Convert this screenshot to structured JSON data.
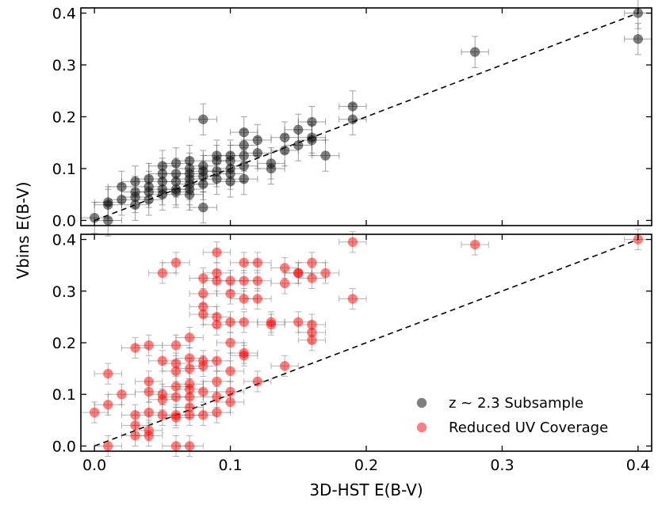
{
  "chart_data": {
    "type": "scatter",
    "shared_x": true,
    "xlabel": "3D-HST E(B-V)",
    "ylabel": "Vbins E(B-V)",
    "xlim": [
      -0.01,
      0.41
    ],
    "xticks": [
      0.0,
      0.1,
      0.2,
      0.3,
      0.4
    ],
    "xtick_labels": [
      "0.0",
      "0.1",
      "0.2",
      "0.3",
      "0.4"
    ],
    "legend": {
      "placement": "bottom-right of lower panel",
      "entries": [
        {
          "label": "z ~ 2.3 Subsample",
          "color": "#000000"
        },
        {
          "label": "Reduced UV Coverage",
          "color": "#ff0000"
        }
      ]
    },
    "one_to_one_line": {
      "style": "dashed",
      "from": [
        0.0,
        0.0
      ],
      "to": [
        0.4,
        0.4
      ]
    },
    "panels": [
      {
        "name": "top",
        "series_name": "z ~ 2.3 Subsample",
        "color": "#000000",
        "ylim": [
          -0.01,
          0.41
        ],
        "yticks": [
          0.0,
          0.1,
          0.2,
          0.3,
          0.4
        ],
        "ytick_labels": [
          "0.0",
          "0.1",
          "0.2",
          "0.3",
          "0.4"
        ],
        "xerr": 0.01,
        "yerr": 0.03,
        "points": [
          [
            0.0,
            0.005
          ],
          [
            0.01,
            0.03
          ],
          [
            0.01,
            0.035
          ],
          [
            0.01,
            0.0
          ],
          [
            0.02,
            0.065
          ],
          [
            0.02,
            0.04
          ],
          [
            0.03,
            0.075
          ],
          [
            0.03,
            0.055
          ],
          [
            0.03,
            0.045
          ],
          [
            0.03,
            0.03
          ],
          [
            0.04,
            0.08
          ],
          [
            0.04,
            0.065
          ],
          [
            0.04,
            0.055
          ],
          [
            0.04,
            0.04
          ],
          [
            0.05,
            0.105
          ],
          [
            0.05,
            0.09
          ],
          [
            0.05,
            0.075
          ],
          [
            0.05,
            0.06
          ],
          [
            0.05,
            0.05
          ],
          [
            0.06,
            0.11
          ],
          [
            0.06,
            0.09
          ],
          [
            0.06,
            0.075
          ],
          [
            0.06,
            0.06
          ],
          [
            0.06,
            0.055
          ],
          [
            0.07,
            0.115
          ],
          [
            0.07,
            0.1
          ],
          [
            0.07,
            0.09
          ],
          [
            0.07,
            0.08
          ],
          [
            0.07,
            0.07
          ],
          [
            0.07,
            0.06
          ],
          [
            0.07,
            0.05
          ],
          [
            0.08,
            0.195
          ],
          [
            0.08,
            0.105
          ],
          [
            0.08,
            0.095
          ],
          [
            0.08,
            0.085
          ],
          [
            0.08,
            0.07
          ],
          [
            0.08,
            0.025
          ],
          [
            0.09,
            0.125
          ],
          [
            0.09,
            0.115
          ],
          [
            0.09,
            0.095
          ],
          [
            0.09,
            0.08
          ],
          [
            0.1,
            0.125
          ],
          [
            0.1,
            0.115
          ],
          [
            0.1,
            0.1
          ],
          [
            0.1,
            0.09
          ],
          [
            0.1,
            0.075
          ],
          [
            0.11,
            0.17
          ],
          [
            0.11,
            0.145
          ],
          [
            0.11,
            0.125
          ],
          [
            0.11,
            0.105
          ],
          [
            0.11,
            0.08
          ],
          [
            0.12,
            0.155
          ],
          [
            0.12,
            0.13
          ],
          [
            0.13,
            0.11
          ],
          [
            0.13,
            0.1
          ],
          [
            0.14,
            0.16
          ],
          [
            0.14,
            0.135
          ],
          [
            0.15,
            0.175
          ],
          [
            0.15,
            0.145
          ],
          [
            0.16,
            0.19
          ],
          [
            0.16,
            0.16
          ],
          [
            0.16,
            0.155
          ],
          [
            0.17,
            0.125
          ],
          [
            0.19,
            0.22
          ],
          [
            0.19,
            0.195
          ],
          [
            0.28,
            0.325
          ],
          [
            0.4,
            0.4
          ],
          [
            0.4,
            0.35
          ]
        ]
      },
      {
        "name": "bottom",
        "series_name": "Reduced UV Coverage",
        "color": "#ff0000",
        "ylim": [
          -0.01,
          0.41
        ],
        "yticks": [
          0.0,
          0.1,
          0.2,
          0.3,
          0.4
        ],
        "ytick_labels": [
          "0.0",
          "0.1",
          "0.2",
          "0.3",
          "0.4"
        ],
        "xerr": 0.01,
        "yerr": 0.02,
        "points": [
          [
            0.0,
            0.065
          ],
          [
            0.01,
            0.14
          ],
          [
            0.01,
            0.08
          ],
          [
            0.01,
            0.0
          ],
          [
            0.02,
            0.1
          ],
          [
            0.03,
            0.19
          ],
          [
            0.03,
            0.06
          ],
          [
            0.03,
            0.04
          ],
          [
            0.03,
            0.02
          ],
          [
            0.04,
            0.195
          ],
          [
            0.04,
            0.125
          ],
          [
            0.04,
            0.105
          ],
          [
            0.04,
            0.065
          ],
          [
            0.04,
            0.03
          ],
          [
            0.04,
            0.02
          ],
          [
            0.05,
            0.335
          ],
          [
            0.05,
            0.165
          ],
          [
            0.05,
            0.1
          ],
          [
            0.05,
            0.09
          ],
          [
            0.05,
            0.06
          ],
          [
            0.06,
            0.355
          ],
          [
            0.06,
            0.195
          ],
          [
            0.06,
            0.16
          ],
          [
            0.06,
            0.145
          ],
          [
            0.06,
            0.115
          ],
          [
            0.06,
            0.095
          ],
          [
            0.06,
            0.06
          ],
          [
            0.06,
            0.055
          ],
          [
            0.06,
            0.0
          ],
          [
            0.07,
            0.21
          ],
          [
            0.07,
            0.17
          ],
          [
            0.07,
            0.15
          ],
          [
            0.07,
            0.12
          ],
          [
            0.07,
            0.11
          ],
          [
            0.07,
            0.095
          ],
          [
            0.07,
            0.075
          ],
          [
            0.07,
            0.06
          ],
          [
            0.07,
            0.0
          ],
          [
            0.08,
            0.325
          ],
          [
            0.08,
            0.295
          ],
          [
            0.08,
            0.27
          ],
          [
            0.08,
            0.255
          ],
          [
            0.08,
            0.165
          ],
          [
            0.08,
            0.155
          ],
          [
            0.08,
            0.105
          ],
          [
            0.08,
            0.06
          ],
          [
            0.09,
            0.375
          ],
          [
            0.09,
            0.335
          ],
          [
            0.09,
            0.32
          ],
          [
            0.09,
            0.25
          ],
          [
            0.09,
            0.235
          ],
          [
            0.09,
            0.165
          ],
          [
            0.09,
            0.125
          ],
          [
            0.09,
            0.095
          ],
          [
            0.09,
            0.065
          ],
          [
            0.1,
            0.32
          ],
          [
            0.1,
            0.295
          ],
          [
            0.1,
            0.24
          ],
          [
            0.1,
            0.2
          ],
          [
            0.1,
            0.145
          ],
          [
            0.1,
            0.105
          ],
          [
            0.1,
            0.085
          ],
          [
            0.11,
            0.355
          ],
          [
            0.11,
            0.32
          ],
          [
            0.11,
            0.285
          ],
          [
            0.11,
            0.24
          ],
          [
            0.11,
            0.18
          ],
          [
            0.11,
            0.175
          ],
          [
            0.12,
            0.355
          ],
          [
            0.12,
            0.32
          ],
          [
            0.12,
            0.285
          ],
          [
            0.12,
            0.125
          ],
          [
            0.13,
            0.24
          ],
          [
            0.13,
            0.235
          ],
          [
            0.14,
            0.345
          ],
          [
            0.14,
            0.315
          ],
          [
            0.14,
            0.155
          ],
          [
            0.15,
            0.335
          ],
          [
            0.15,
            0.335
          ],
          [
            0.15,
            0.24
          ],
          [
            0.16,
            0.355
          ],
          [
            0.16,
            0.325
          ],
          [
            0.16,
            0.235
          ],
          [
            0.16,
            0.22
          ],
          [
            0.16,
            0.205
          ],
          [
            0.17,
            0.335
          ],
          [
            0.19,
            0.395
          ],
          [
            0.19,
            0.285
          ],
          [
            0.28,
            0.39
          ],
          [
            0.4,
            0.4
          ]
        ]
      }
    ]
  }
}
